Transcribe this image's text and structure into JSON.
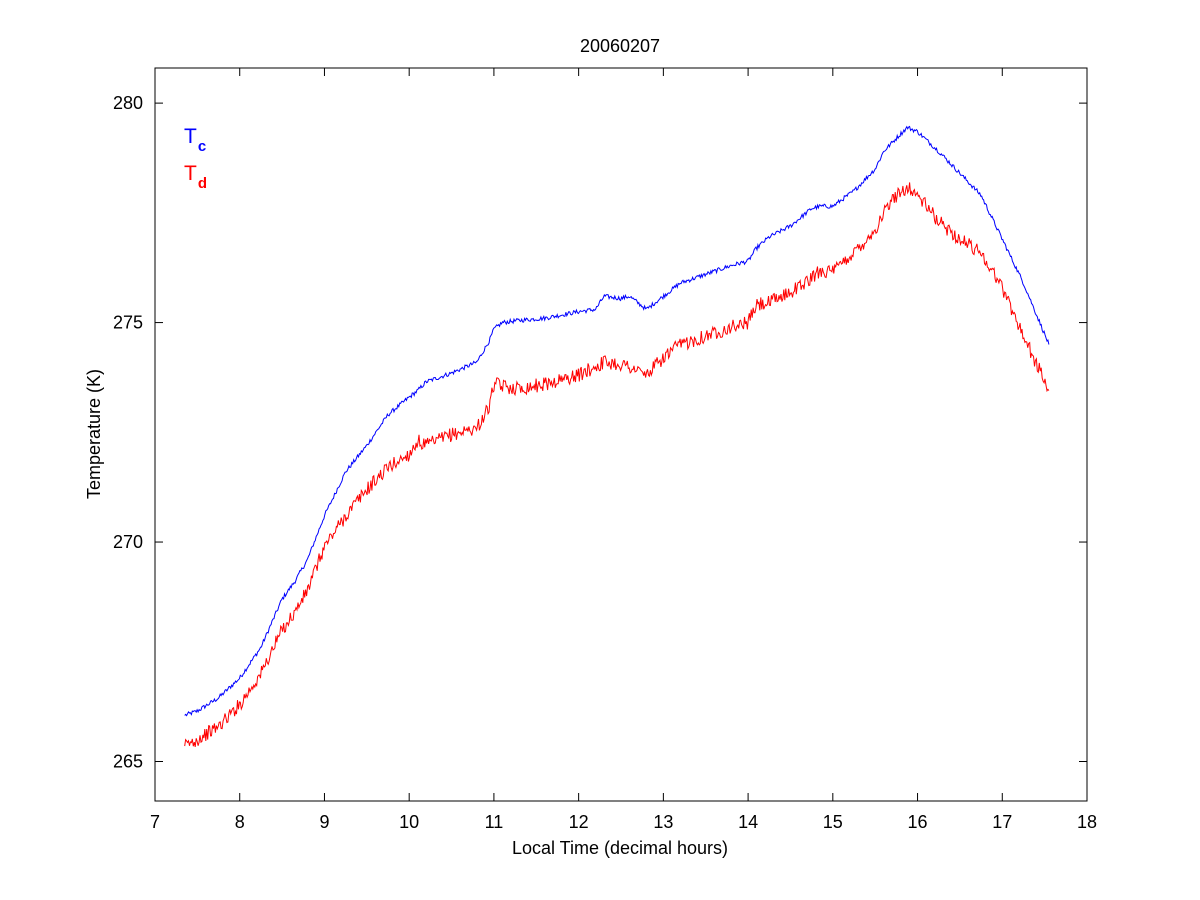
{
  "chart_data": {
    "type": "line",
    "title": "20060207",
    "xlabel": "Local Time (decimal hours)",
    "ylabel": "Temperature (K)",
    "xlim": [
      7,
      18
    ],
    "ylim": [
      264.1,
      280.8
    ],
    "xticks": [
      7,
      8,
      9,
      10,
      11,
      12,
      13,
      14,
      15,
      16,
      17,
      18
    ],
    "yticks": [
      265,
      270,
      275,
      280
    ],
    "grid": false,
    "legend_position": "top-left",
    "series": [
      {
        "name": "T",
        "subscript": "c",
        "color": "#0000ff",
        "jitter": 0.05,
        "x": [
          7.35,
          7.5,
          7.75,
          8.0,
          8.25,
          8.5,
          8.65,
          8.8,
          9.0,
          9.25,
          9.5,
          9.75,
          10.0,
          10.1,
          10.2,
          10.5,
          10.8,
          10.95,
          11.0,
          11.1,
          11.3,
          11.6,
          12.0,
          12.2,
          12.3,
          12.5,
          12.6,
          12.8,
          13.0,
          13.2,
          13.5,
          13.8,
          14.0,
          14.1,
          14.25,
          14.5,
          14.75,
          14.85,
          15.0,
          15.25,
          15.5,
          15.6,
          15.75,
          15.88,
          16.0,
          16.25,
          16.5,
          16.75,
          17.0,
          17.25,
          17.55
        ],
        "y": [
          266.05,
          266.15,
          266.45,
          266.9,
          267.6,
          268.7,
          269.1,
          269.6,
          270.6,
          271.6,
          272.2,
          272.9,
          273.3,
          273.45,
          273.65,
          273.85,
          274.1,
          274.6,
          274.85,
          275.0,
          275.05,
          275.1,
          275.25,
          275.3,
          275.6,
          275.55,
          275.6,
          275.3,
          275.6,
          275.9,
          276.1,
          276.3,
          276.4,
          276.7,
          276.95,
          277.2,
          277.6,
          277.65,
          277.65,
          278.0,
          278.5,
          278.9,
          279.2,
          279.45,
          279.35,
          278.9,
          278.4,
          277.9,
          276.9,
          275.9,
          274.5
        ]
      },
      {
        "name": "T",
        "subscript": "d",
        "color": "#ff0000",
        "jitter": 0.16,
        "x": [
          7.35,
          7.5,
          7.75,
          8.0,
          8.25,
          8.5,
          8.65,
          8.8,
          9.0,
          9.25,
          9.5,
          9.75,
          10.0,
          10.1,
          10.2,
          10.5,
          10.8,
          10.95,
          11.0,
          11.1,
          11.3,
          11.6,
          12.0,
          12.2,
          12.3,
          12.5,
          12.6,
          12.8,
          13.0,
          13.2,
          13.5,
          13.8,
          14.0,
          14.1,
          14.25,
          14.5,
          14.75,
          14.85,
          15.0,
          15.25,
          15.5,
          15.6,
          15.75,
          15.88,
          16.0,
          16.25,
          16.5,
          16.75,
          17.0,
          17.25,
          17.55
        ],
        "y": [
          265.35,
          265.5,
          265.8,
          266.3,
          267.0,
          268.0,
          268.4,
          268.9,
          269.9,
          270.6,
          271.2,
          271.7,
          272.0,
          272.3,
          272.2,
          272.45,
          272.6,
          273.1,
          273.6,
          273.55,
          273.5,
          273.6,
          273.8,
          274.0,
          274.1,
          274.05,
          274.0,
          273.8,
          274.2,
          274.5,
          274.7,
          274.9,
          275.0,
          275.4,
          275.45,
          275.7,
          276.0,
          276.2,
          276.15,
          276.6,
          277.1,
          277.5,
          277.9,
          278.1,
          277.9,
          277.3,
          276.9,
          276.6,
          275.8,
          274.7,
          273.45
        ]
      }
    ]
  }
}
